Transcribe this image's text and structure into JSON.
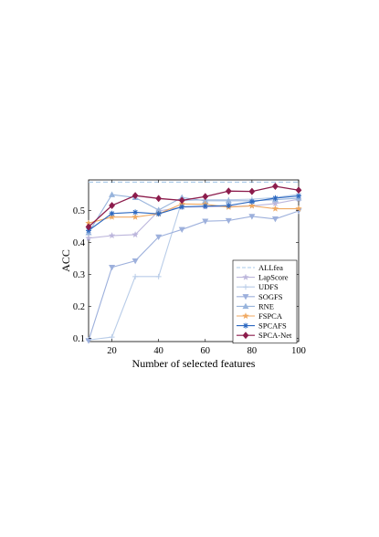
{
  "chart_data": {
    "type": "line",
    "xlabel": "Number of selected features",
    "ylabel": "ACC",
    "xlim": [
      10,
      100
    ],
    "ylim": [
      0.09,
      0.595
    ],
    "xticks": [
      20,
      40,
      60,
      80,
      100
    ],
    "yticks": [
      0.1,
      0.2,
      0.3,
      0.4,
      0.5
    ],
    "grid": false,
    "legend_position": "bottom-right",
    "x": [
      10,
      20,
      30,
      40,
      50,
      60,
      70,
      80,
      90,
      100
    ],
    "series": [
      {
        "name": "ALLfea",
        "color": "#a8c8e8",
        "style": "dashed",
        "marker": "none",
        "values": [
          0.588,
          0.588,
          0.588,
          0.588,
          0.588,
          0.588,
          0.588,
          0.588,
          0.588,
          0.588
        ]
      },
      {
        "name": "LapScore",
        "color": "#bcb6dc",
        "style": "solid",
        "marker": "star",
        "values": [
          0.413,
          0.421,
          0.424,
          0.498,
          0.51,
          0.511,
          0.512,
          0.514,
          0.521,
          0.535
        ]
      },
      {
        "name": "UDFS",
        "color": "#b8cce8",
        "style": "solid",
        "marker": "plus",
        "values": [
          0.095,
          0.104,
          0.293,
          0.293,
          0.53,
          0.533,
          0.533,
          0.535,
          0.54,
          0.55
        ]
      },
      {
        "name": "SOGFS",
        "color": "#9db0dc",
        "style": "solid",
        "marker": "triangle-down",
        "values": [
          0.093,
          0.322,
          0.342,
          0.417,
          0.44,
          0.466,
          0.468,
          0.481,
          0.473,
          0.498
        ]
      },
      {
        "name": "RNE",
        "color": "#98b4dc",
        "style": "solid",
        "marker": "triangle-up",
        "values": [
          0.43,
          0.549,
          0.54,
          0.501,
          0.54,
          0.53,
          0.53,
          0.53,
          0.533,
          0.538
        ]
      },
      {
        "name": "FSPCA",
        "color": "#f0a860",
        "style": "solid",
        "marker": "star",
        "values": [
          0.46,
          0.479,
          0.479,
          0.489,
          0.52,
          0.519,
          0.51,
          0.514,
          0.505,
          0.505
        ]
      },
      {
        "name": "SPCAFS",
        "color": "#2c68c0",
        "style": "solid",
        "marker": "asterisk",
        "values": [
          0.437,
          0.49,
          0.494,
          0.489,
          0.511,
          0.513,
          0.515,
          0.527,
          0.538,
          0.545
        ]
      },
      {
        "name": "SPCA-Net",
        "color": "#8c1c4c",
        "style": "solid",
        "marker": "diamond",
        "values": [
          0.448,
          0.515,
          0.546,
          0.537,
          0.531,
          0.543,
          0.56,
          0.559,
          0.575,
          0.563
        ]
      }
    ]
  }
}
